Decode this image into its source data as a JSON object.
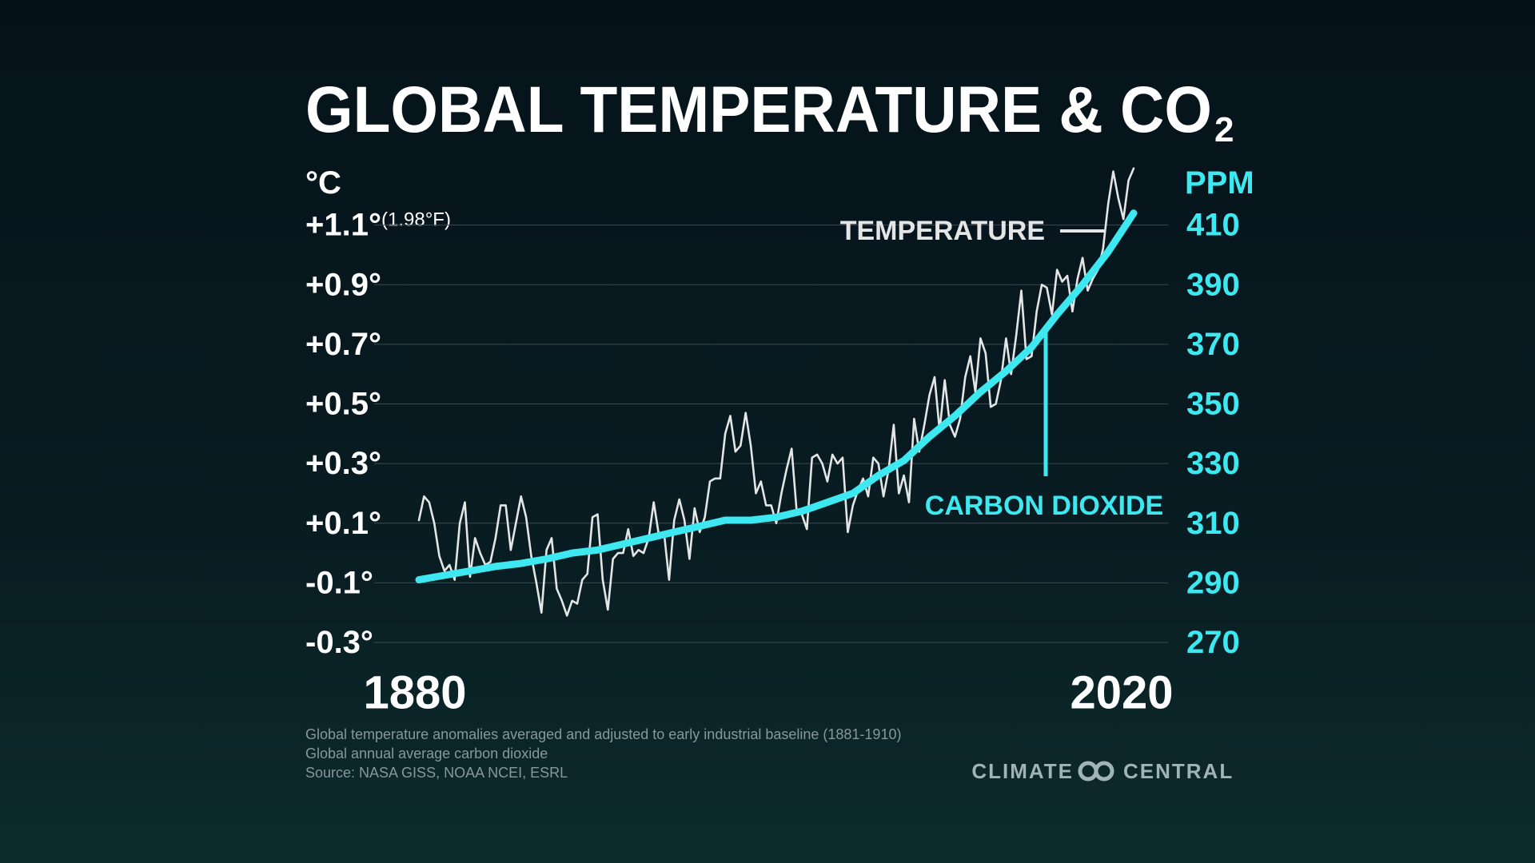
{
  "chart_data": {
    "type": "line",
    "title": "GLOBAL TEMPERATURE & CO",
    "title_subscript": "2",
    "y_label": "°C",
    "y2_label": "PPM",
    "annotation": "(1.98°F)",
    "xlim": [
      1880,
      2020
    ],
    "xticks": [
      1880,
      2020
    ],
    "ylim": [
      -0.3,
      1.3
    ],
    "yticks": [
      {
        "value": 1.1,
        "label": "+1.1°"
      },
      {
        "value": 0.9,
        "label": "+0.9°"
      },
      {
        "value": 0.7,
        "label": "+0.7°"
      },
      {
        "value": 0.5,
        "label": "+0.5°"
      },
      {
        "value": 0.3,
        "label": "+0.3°"
      },
      {
        "value": 0.1,
        "label": "+0.1°"
      },
      {
        "value": -0.1,
        "label": "-0.1°"
      },
      {
        "value": -0.3,
        "label": "-0.3°"
      }
    ],
    "y2lim": [
      270,
      430
    ],
    "y2ticks": [
      410,
      390,
      370,
      350,
      330,
      310,
      290,
      270
    ],
    "grid": true,
    "series": [
      {
        "name": "TEMPERATURE",
        "color": "#e4e6e6",
        "x": [
          1880,
          1881,
          1882,
          1883,
          1884,
          1885,
          1886,
          1887,
          1888,
          1889,
          1890,
          1891,
          1892,
          1893,
          1894,
          1895,
          1896,
          1897,
          1898,
          1899,
          1900,
          1901,
          1902,
          1903,
          1904,
          1905,
          1906,
          1907,
          1908,
          1909,
          1910,
          1911,
          1912,
          1913,
          1914,
          1915,
          1916,
          1917,
          1918,
          1919,
          1920,
          1921,
          1922,
          1923,
          1924,
          1925,
          1926,
          1927,
          1928,
          1929,
          1930,
          1931,
          1932,
          1933,
          1934,
          1935,
          1936,
          1937,
          1938,
          1939,
          1940,
          1941,
          1942,
          1943,
          1944,
          1945,
          1946,
          1947,
          1948,
          1949,
          1950,
          1951,
          1952,
          1953,
          1954,
          1955,
          1956,
          1957,
          1958,
          1959,
          1960,
          1961,
          1962,
          1963,
          1964,
          1965,
          1966,
          1967,
          1968,
          1969,
          1970,
          1971,
          1972,
          1973,
          1974,
          1975,
          1976,
          1977,
          1978,
          1979,
          1980,
          1981,
          1982,
          1983,
          1984,
          1985,
          1986,
          1987,
          1988,
          1989,
          1990,
          1991,
          1992,
          1993,
          1994,
          1995,
          1996,
          1997,
          1998,
          1999,
          2000,
          2001,
          2002,
          2003,
          2004,
          2005,
          2006,
          2007,
          2008,
          2009,
          2010,
          2011,
          2012,
          2013,
          2014,
          2015,
          2016,
          2017,
          2018,
          2019,
          2020
        ],
        "values": [
          0.11,
          0.19,
          0.17,
          0.1,
          -0.01,
          -0.06,
          -0.04,
          -0.09,
          0.1,
          0.17,
          -0.08,
          0.05,
          0.0,
          -0.04,
          -0.03,
          0.05,
          0.16,
          0.16,
          0.01,
          0.1,
          0.19,
          0.12,
          -0.01,
          -0.1,
          -0.2,
          0.01,
          0.05,
          -0.12,
          -0.16,
          -0.21,
          -0.16,
          -0.17,
          -0.09,
          -0.07,
          0.12,
          0.13,
          -0.09,
          -0.19,
          -0.02,
          0.0,
          0.0,
          0.08,
          -0.01,
          0.01,
          0.0,
          0.05,
          0.17,
          0.06,
          0.07,
          -0.09,
          0.11,
          0.18,
          0.11,
          -0.02,
          0.15,
          0.07,
          0.12,
          0.24,
          0.25,
          0.25,
          0.4,
          0.46,
          0.34,
          0.36,
          0.47,
          0.36,
          0.2,
          0.24,
          0.16,
          0.16,
          0.1,
          0.2,
          0.28,
          0.35,
          0.14,
          0.13,
          0.08,
          0.32,
          0.33,
          0.3,
          0.24,
          0.33,
          0.3,
          0.32,
          0.07,
          0.16,
          0.21,
          0.25,
          0.19,
          0.32,
          0.3,
          0.19,
          0.28,
          0.43,
          0.2,
          0.26,
          0.17,
          0.45,
          0.34,
          0.43,
          0.53,
          0.59,
          0.41,
          0.58,
          0.43,
          0.39,
          0.45,
          0.59,
          0.66,
          0.54,
          0.72,
          0.67,
          0.49,
          0.5,
          0.58,
          0.72,
          0.6,
          0.73,
          0.88,
          0.65,
          0.66,
          0.81,
          0.9,
          0.89,
          0.8,
          0.95,
          0.91,
          0.93,
          0.81,
          0.92,
          0.99,
          0.88,
          0.92,
          0.95,
          1.02,
          1.17,
          1.28,
          1.19,
          1.12,
          1.25,
          1.29
        ]
      },
      {
        "name": "CARBON DIOXIDE",
        "color": "#3de8f0",
        "axis": "y2",
        "x": [
          1880,
          1885,
          1890,
          1895,
          1900,
          1905,
          1910,
          1915,
          1920,
          1925,
          1930,
          1935,
          1940,
          1945,
          1950,
          1955,
          1960,
          1965,
          1970,
          1975,
          1980,
          1985,
          1990,
          1995,
          2000,
          2005,
          2010,
          2015,
          2020
        ],
        "values": [
          291,
          292.5,
          294,
          295.5,
          296.5,
          298,
          300,
          301,
          303,
          305,
          307,
          309,
          311,
          311,
          312,
          314,
          317,
          320,
          326,
          331,
          339,
          346,
          354,
          361,
          369,
          380,
          390,
          401,
          414
        ]
      }
    ],
    "notes": [
      "Global temperature anomalies averaged and adjusted to early industrial baseline (1881-1910)",
      "Global annual average carbon dioxide",
      "Source: NASA GISS, NOAA NCEI, ESRL"
    ],
    "brand": [
      "CLIMATE",
      "CENTRAL"
    ]
  }
}
